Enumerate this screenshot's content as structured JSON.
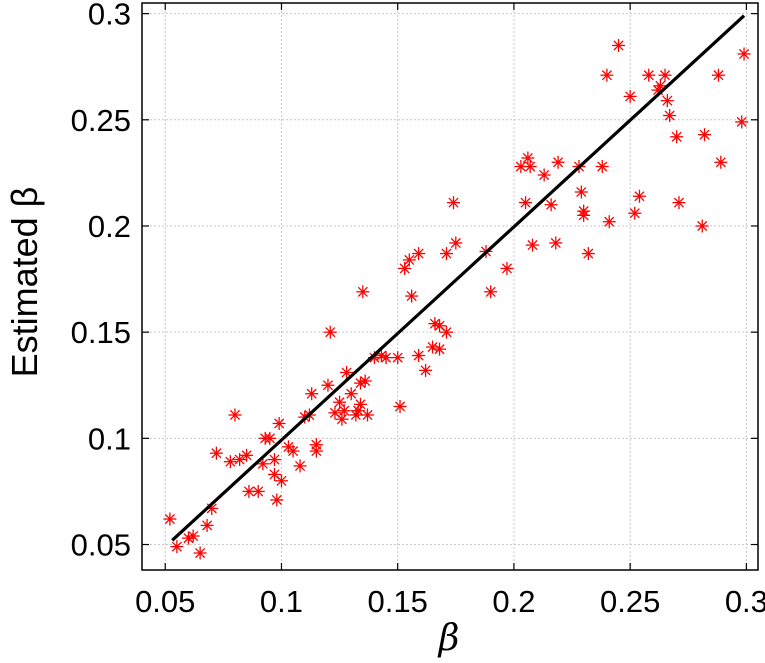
{
  "chart_data": {
    "type": "scatter",
    "xlabel": "β",
    "ylabel": "Estimated β",
    "xlim": [
      0.04,
      0.305
    ],
    "ylim": [
      0.038,
      0.305
    ],
    "xticks": [
      0.05,
      0.1,
      0.15,
      0.2,
      0.25,
      0.3
    ],
    "yticks": [
      0.05,
      0.1,
      0.15,
      0.2,
      0.25,
      0.3
    ],
    "xtick_labels": [
      "0.05",
      "0.1",
      "0.15",
      "0.2",
      "0.25",
      "0.3"
    ],
    "ytick_labels": [
      "0.05",
      "0.1",
      "0.15",
      "0.2",
      "0.25",
      "0.3"
    ],
    "grid": true,
    "legend": "none",
    "colors": {
      "points": "#ff0000",
      "line": "#000000",
      "grid": "#c8c8c8"
    },
    "series": [
      {
        "type": "scatter",
        "marker": "asterisk",
        "points": [
          [
            0.052,
            0.062
          ],
          [
            0.055,
            0.049
          ],
          [
            0.06,
            0.053
          ],
          [
            0.062,
            0.054
          ],
          [
            0.065,
            0.046
          ],
          [
            0.068,
            0.059
          ],
          [
            0.07,
            0.067
          ],
          [
            0.072,
            0.093
          ],
          [
            0.078,
            0.089
          ],
          [
            0.08,
            0.111
          ],
          [
            0.082,
            0.09
          ],
          [
            0.085,
            0.092
          ],
          [
            0.086,
            0.075
          ],
          [
            0.09,
            0.075
          ],
          [
            0.092,
            0.088
          ],
          [
            0.093,
            0.1
          ],
          [
            0.095,
            0.1
          ],
          [
            0.097,
            0.09
          ],
          [
            0.097,
            0.083
          ],
          [
            0.098,
            0.071
          ],
          [
            0.099,
            0.107
          ],
          [
            0.1,
            0.08
          ],
          [
            0.103,
            0.096
          ],
          [
            0.105,
            0.094
          ],
          [
            0.108,
            0.087
          ],
          [
            0.11,
            0.11
          ],
          [
            0.112,
            0.111
          ],
          [
            0.113,
            0.121
          ],
          [
            0.115,
            0.094
          ],
          [
            0.115,
            0.097
          ],
          [
            0.12,
            0.125
          ],
          [
            0.121,
            0.15
          ],
          [
            0.123,
            0.112
          ],
          [
            0.125,
            0.117
          ],
          [
            0.126,
            0.109
          ],
          [
            0.127,
            0.113
          ],
          [
            0.128,
            0.131
          ],
          [
            0.13,
            0.121
          ],
          [
            0.132,
            0.111
          ],
          [
            0.133,
            0.113
          ],
          [
            0.134,
            0.116
          ],
          [
            0.134,
            0.126
          ],
          [
            0.135,
            0.169
          ],
          [
            0.136,
            0.127
          ],
          [
            0.137,
            0.111
          ],
          [
            0.14,
            0.138
          ],
          [
            0.143,
            0.139
          ],
          [
            0.145,
            0.138
          ],
          [
            0.15,
            0.138
          ],
          [
            0.151,
            0.115
          ],
          [
            0.153,
            0.18
          ],
          [
            0.155,
            0.184
          ],
          [
            0.156,
            0.167
          ],
          [
            0.159,
            0.187
          ],
          [
            0.159,
            0.139
          ],
          [
            0.162,
            0.132
          ],
          [
            0.165,
            0.143
          ],
          [
            0.166,
            0.154
          ],
          [
            0.168,
            0.153
          ],
          [
            0.168,
            0.142
          ],
          [
            0.171,
            0.15
          ],
          [
            0.171,
            0.187
          ],
          [
            0.174,
            0.211
          ],
          [
            0.175,
            0.192
          ],
          [
            0.188,
            0.188
          ],
          [
            0.19,
            0.169
          ],
          [
            0.197,
            0.18
          ],
          [
            0.203,
            0.228
          ],
          [
            0.205,
            0.211
          ],
          [
            0.206,
            0.232
          ],
          [
            0.207,
            0.228
          ],
          [
            0.208,
            0.191
          ],
          [
            0.213,
            0.224
          ],
          [
            0.216,
            0.21
          ],
          [
            0.218,
            0.192
          ],
          [
            0.219,
            0.23
          ],
          [
            0.228,
            0.228
          ],
          [
            0.229,
            0.216
          ],
          [
            0.23,
            0.205
          ],
          [
            0.23,
            0.207
          ],
          [
            0.232,
            0.187
          ],
          [
            0.238,
            0.228
          ],
          [
            0.24,
            0.271
          ],
          [
            0.241,
            0.202
          ],
          [
            0.245,
            0.285
          ],
          [
            0.25,
            0.261
          ],
          [
            0.252,
            0.206
          ],
          [
            0.254,
            0.214
          ],
          [
            0.258,
            0.271
          ],
          [
            0.262,
            0.264
          ],
          [
            0.263,
            0.266
          ],
          [
            0.265,
            0.271
          ],
          [
            0.266,
            0.259
          ],
          [
            0.267,
            0.252
          ],
          [
            0.27,
            0.242
          ],
          [
            0.271,
            0.211
          ],
          [
            0.281,
            0.2
          ],
          [
            0.282,
            0.243
          ],
          [
            0.288,
            0.271
          ],
          [
            0.289,
            0.23
          ],
          [
            0.298,
            0.249
          ],
          [
            0.299,
            0.281
          ]
        ]
      },
      {
        "type": "line",
        "points": [
          [
            0.053,
            0.052
          ],
          [
            0.299,
            0.299
          ]
        ]
      }
    ]
  }
}
